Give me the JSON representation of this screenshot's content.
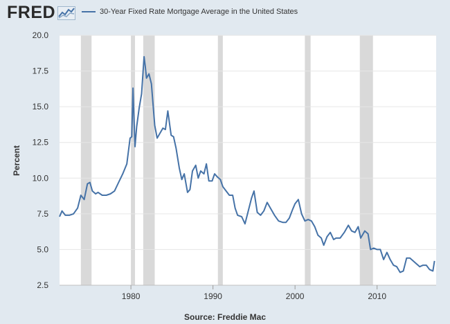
{
  "brand": {
    "name": "FRED",
    "icon": "fred-graph-icon",
    "accent": "#4572a7"
  },
  "chart_data": {
    "type": "line",
    "title": "30-Year Fixed Rate Mortgage Average in the United States",
    "ylabel": "Percent",
    "source": "Source: Freddie Mac",
    "xlim": [
      1971.3,
      2017.2
    ],
    "ylim": [
      2.5,
      20.0
    ],
    "yticks": [
      "2.5",
      "5.0",
      "7.5",
      "10.0",
      "12.5",
      "15.0",
      "17.5",
      "20.0"
    ],
    "xticks": [
      "1980",
      "1990",
      "2000",
      "2010"
    ],
    "recession_color": "#d9d9d9",
    "recessions": [
      [
        1973.9,
        1975.2
      ],
      [
        1980.0,
        1980.5
      ],
      [
        1981.5,
        1982.9
      ],
      [
        1990.6,
        1991.2
      ],
      [
        2001.2,
        2001.9
      ],
      [
        2007.9,
        2009.5
      ]
    ],
    "series": [
      {
        "name": "30-Year Fixed Rate Mortgage Average in the United States",
        "color": "#4572a7",
        "x": [
          1971.3,
          1971.6,
          1972.0,
          1972.5,
          1973.0,
          1973.5,
          1973.9,
          1974.3,
          1974.7,
          1975.0,
          1975.3,
          1975.7,
          1976.0,
          1976.5,
          1977.0,
          1977.5,
          1978.0,
          1978.5,
          1979.0,
          1979.5,
          1979.9,
          1980.1,
          1980.25,
          1980.35,
          1980.5,
          1980.7,
          1981.0,
          1981.3,
          1981.6,
          1981.75,
          1981.9,
          1982.2,
          1982.5,
          1982.9,
          1983.2,
          1983.5,
          1983.9,
          1984.2,
          1984.5,
          1984.9,
          1985.2,
          1985.5,
          1985.9,
          1986.2,
          1986.5,
          1986.9,
          1987.2,
          1987.5,
          1987.9,
          1988.2,
          1988.5,
          1988.9,
          1989.2,
          1989.5,
          1989.9,
          1990.2,
          1990.5,
          1990.9,
          1991.2,
          1991.6,
          1992.0,
          1992.4,
          1992.7,
          1993.0,
          1993.5,
          1993.9,
          1994.3,
          1994.7,
          1995.0,
          1995.4,
          1995.8,
          1996.2,
          1996.6,
          1997.0,
          1997.5,
          1998.0,
          1998.5,
          1998.9,
          1999.3,
          1999.7,
          2000.0,
          2000.4,
          2000.8,
          2001.2,
          2001.6,
          2002.0,
          2002.4,
          2002.8,
          2003.2,
          2003.5,
          2003.9,
          2004.3,
          2004.7,
          2005.0,
          2005.5,
          2006.0,
          2006.5,
          2006.9,
          2007.3,
          2007.7,
          2008.0,
          2008.5,
          2008.9,
          2009.2,
          2009.6,
          2010.0,
          2010.4,
          2010.8,
          2011.2,
          2011.6,
          2012.0,
          2012.4,
          2012.8,
          2013.2,
          2013.6,
          2014.0,
          2014.4,
          2014.8,
          2015.2,
          2015.6,
          2016.0,
          2016.4,
          2016.8,
          2017.0
        ],
        "y": [
          7.3,
          7.7,
          7.4,
          7.4,
          7.5,
          7.9,
          8.8,
          8.5,
          9.6,
          9.7,
          9.1,
          8.9,
          9.0,
          8.8,
          8.8,
          8.9,
          9.1,
          9.7,
          10.3,
          11.0,
          12.8,
          12.9,
          16.3,
          14.5,
          12.2,
          13.6,
          14.9,
          15.9,
          18.5,
          17.8,
          17.0,
          17.3,
          16.6,
          13.7,
          12.8,
          13.1,
          13.5,
          13.4,
          14.7,
          13.0,
          12.9,
          12.1,
          10.7,
          9.9,
          10.3,
          9.0,
          9.2,
          10.5,
          10.9,
          10.0,
          10.5,
          10.3,
          11.0,
          9.8,
          9.8,
          10.3,
          10.1,
          9.9,
          9.4,
          9.1,
          8.8,
          8.8,
          7.9,
          7.4,
          7.3,
          6.8,
          7.7,
          8.6,
          9.1,
          7.6,
          7.4,
          7.7,
          8.3,
          7.9,
          7.4,
          7.0,
          6.9,
          6.9,
          7.2,
          7.8,
          8.2,
          8.5,
          7.5,
          7.0,
          7.1,
          7.0,
          6.6,
          6.0,
          5.8,
          5.3,
          5.9,
          6.2,
          5.7,
          5.8,
          5.8,
          6.2,
          6.7,
          6.3,
          6.2,
          6.6,
          5.8,
          6.3,
          6.1,
          5.0,
          5.1,
          5.0,
          5.0,
          4.3,
          4.8,
          4.3,
          3.9,
          3.8,
          3.4,
          3.5,
          4.4,
          4.4,
          4.2,
          4.0,
          3.8,
          3.9,
          3.9,
          3.6,
          3.5,
          4.2
        ]
      }
    ]
  }
}
